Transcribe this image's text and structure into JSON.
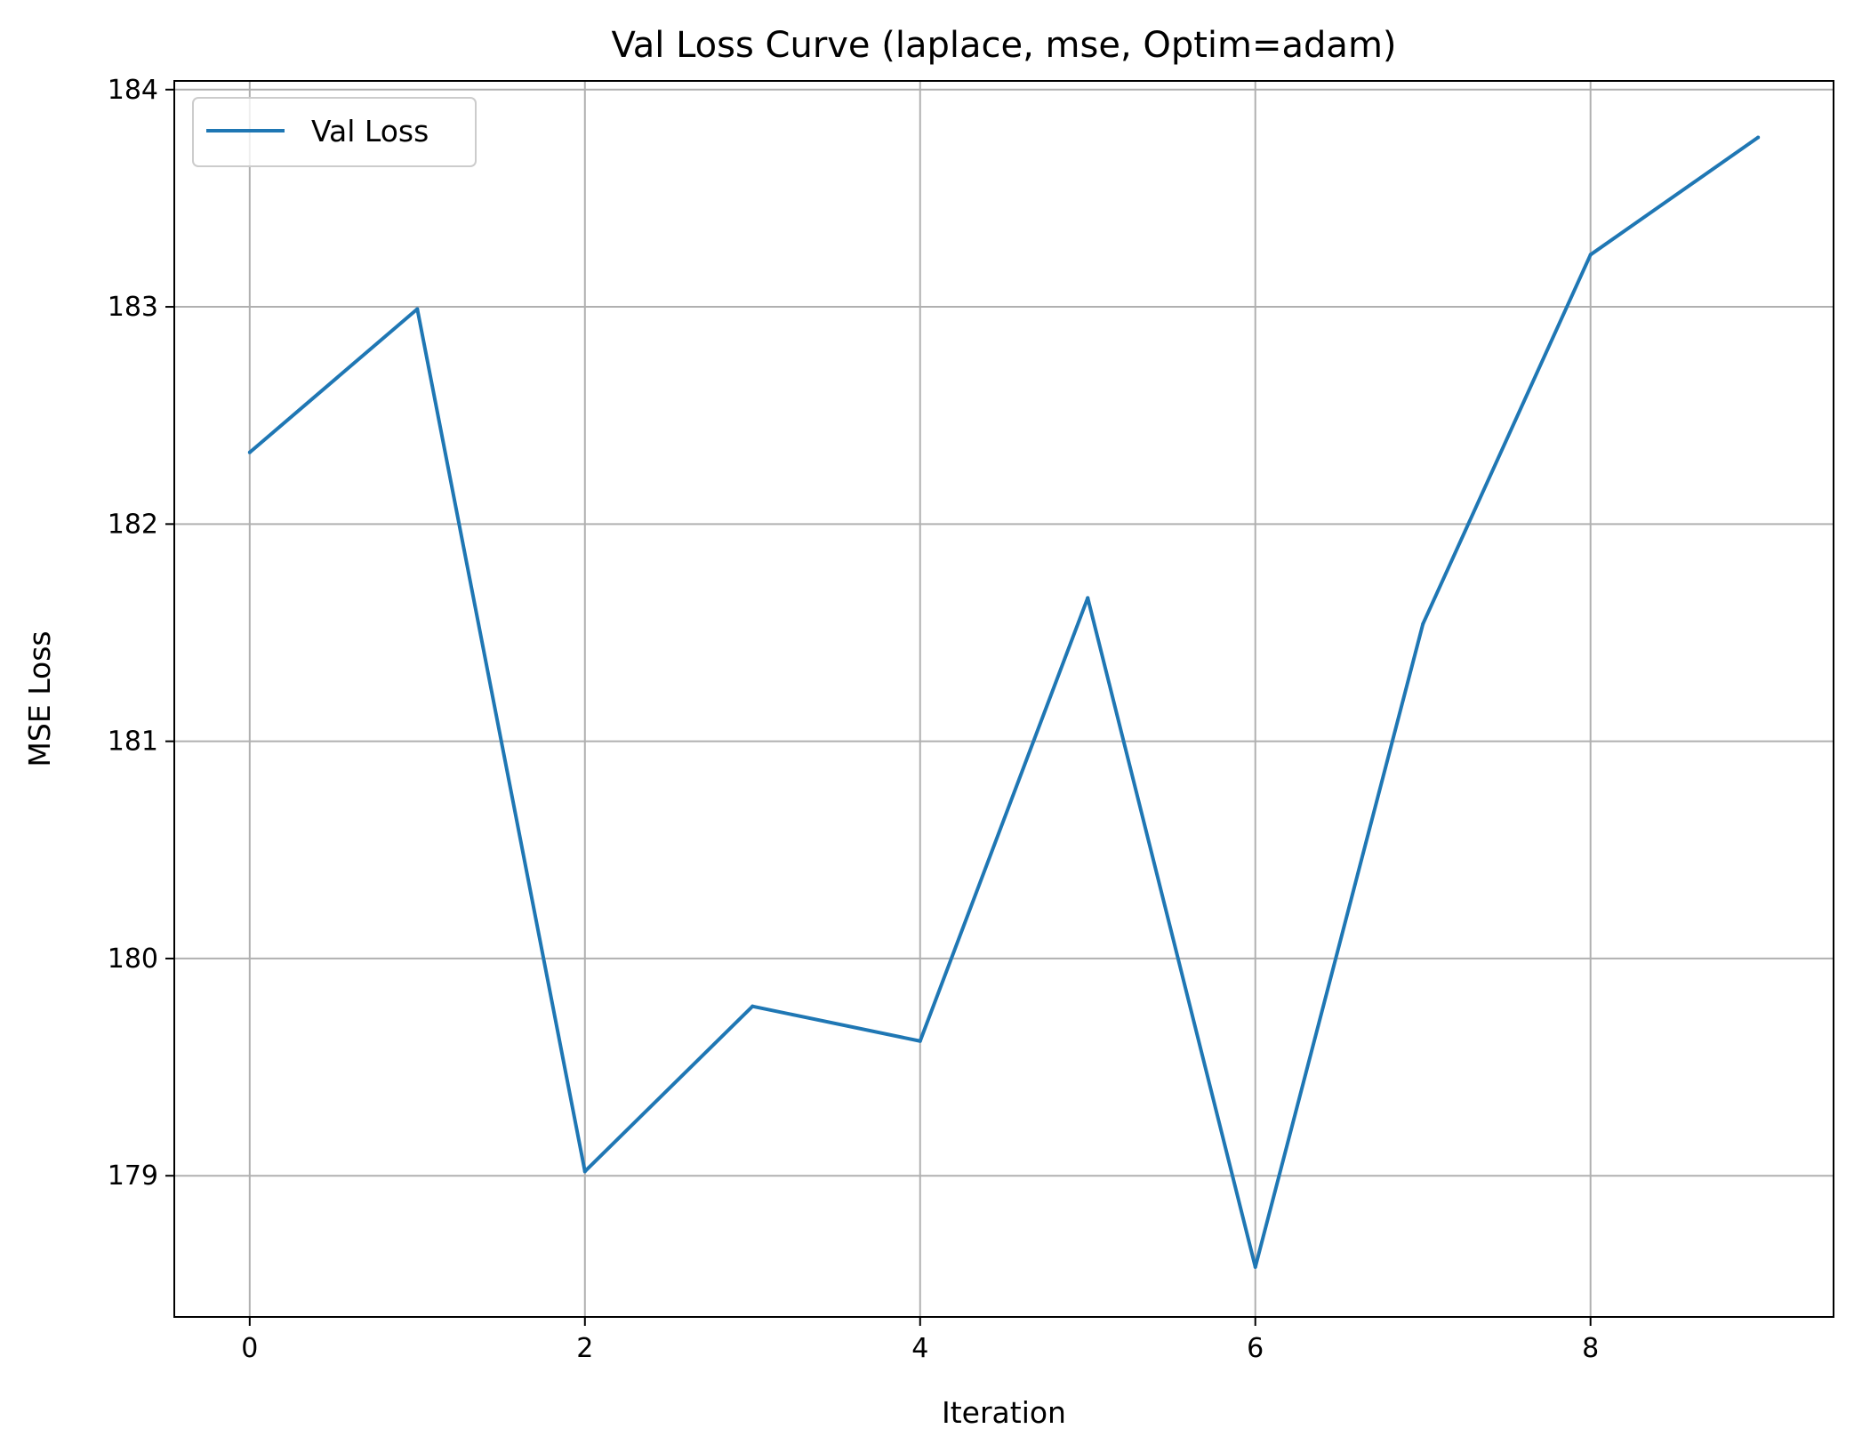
{
  "chart_data": {
    "type": "line",
    "title": "Val Loss Curve (laplace, mse, Optim=adam)",
    "xlabel": "Iteration",
    "ylabel": "MSE Loss",
    "x": [
      0,
      1,
      2,
      3,
      4,
      5,
      6,
      7,
      8,
      9
    ],
    "series": [
      {
        "name": "Val Loss",
        "color": "#1f77b4",
        "values": [
          182.33,
          182.99,
          179.02,
          179.78,
          179.62,
          181.66,
          178.58,
          181.54,
          183.24,
          183.78
        ]
      }
    ],
    "xlim": [
      -0.45,
      9.45
    ],
    "ylim": [
      178.35,
      184.04
    ],
    "xticks": [
      0,
      2,
      4,
      6,
      8
    ],
    "yticks": [
      179,
      180,
      181,
      182,
      183,
      184
    ],
    "xtick_labels": [
      "0",
      "2",
      "4",
      "6",
      "8"
    ],
    "ytick_labels": [
      "179",
      "180",
      "181",
      "182",
      "183",
      "184"
    ],
    "grid": true,
    "legend_position": "top-left"
  }
}
